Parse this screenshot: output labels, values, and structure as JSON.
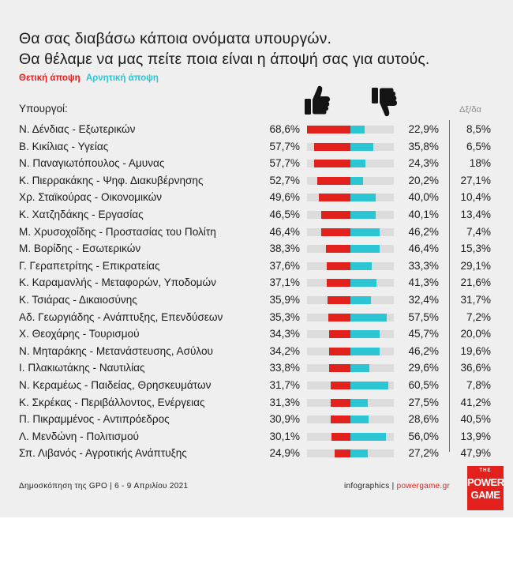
{
  "title_line1": "Θα σας διαβάσω κάποια ονόματα υπουργών.",
  "title_line2": "Θα θέλαμε να μας πείτε ποια είναι η άποψή σας για αυτούς.",
  "legend": {
    "positive": "Θετική άποψη",
    "negative": "Αρνητική άποψη"
  },
  "column_headers": {
    "ministers": "Υπουργοί:",
    "dk": "Δξ/δα"
  },
  "icons": {
    "positive": "thumbs-up-icon",
    "negative": "thumbs-down-icon"
  },
  "colors": {
    "positive": "#e3211c",
    "negative": "#2bc5d4",
    "track": "#dcdcdc",
    "brand": "#e3211c"
  },
  "footer": {
    "source": "Δημοσκόπηση της GPO | 6 - 9 Απριλίου 2021",
    "infographics": "infographics | ",
    "brand": "powergame.gr"
  },
  "logo": {
    "the": "THE",
    "line1": "POWER",
    "line2": "GAME"
  },
  "chart_data": {
    "type": "bar",
    "units": "%",
    "categories": [
      "Ν. Δένδιας - Εξωτερικών",
      "Β. Κικίλιας - Υγείας",
      "Ν. Παναγιωτόπουλος - Αμυνας",
      "Κ. Πιερρακάκης - Ψηφ. Διακυβέρνησης",
      "Χρ. Σταϊκούρας - Οικονομικών",
      "Κ. Χατζηδάκης - Εργασίας",
      "Μ. Χρυσοχοΐδης - Προστασίας του Πολίτη",
      "Μ. Βορίδης - Εσωτερικών",
      "Γ. Γεραπετρίτης - Επικρατείας",
      "Κ. Καραμανλής - Μεταφορών, Υποδομών",
      "Κ. Τσιάρας - Δικαιοσύνης",
      "Αδ. Γεωργιάδης - Ανάπτυξης, Επενδύσεων",
      "Χ. Θεοχάρης - Τουρισμού",
      "Ν. Μηταράκης - Μετανάστευσης, Ασύλου",
      "Ι. Πλακιωτάκης - Ναυτιλίας",
      "Ν. Κεραμέως - Παιδείας, Θρησκευμάτων",
      "Κ. Σκρέκας - Περιβάλλοντος, Ενέργειας",
      "Π. Πικραμμένος - Αντιπρόεδρος",
      "Λ. Μενδώνη - Πολιτισμού",
      "Σπ. Λιβανός - Αγροτικής Ανάπτυξης"
    ],
    "series": [
      {
        "name": "Θετική άποψη",
        "values": [
          68.6,
          57.7,
          57.7,
          52.7,
          49.6,
          46.5,
          46.4,
          38.3,
          37.6,
          37.1,
          35.9,
          35.3,
          34.3,
          34.2,
          33.8,
          31.7,
          31.3,
          30.9,
          30.1,
          24.9
        ],
        "labels": [
          "68,6%",
          "57,7%",
          "57,7%",
          "52,7%",
          "49,6%",
          "46,5%",
          "46,4%",
          "38,3%",
          "37,6%",
          "37,1%",
          "35,9%",
          "35,3%",
          "34,3%",
          "34,2%",
          "33,8%",
          "31,7%",
          "31,3%",
          "30,9%",
          "30,1%",
          "24,9%"
        ]
      },
      {
        "name": "Αρνητική άποψη",
        "values": [
          22.9,
          35.8,
          24.3,
          20.2,
          40.0,
          40.1,
          46.2,
          46.4,
          33.3,
          41.3,
          32.4,
          57.5,
          45.7,
          46.2,
          29.6,
          60.5,
          27.5,
          28.6,
          56.0,
          27.2
        ],
        "labels": [
          "22,9%",
          "35,8%",
          "24,3%",
          "20,2%",
          "40,0%",
          "40,1%",
          "46,2%",
          "46,4%",
          "33,3%",
          "41,3%",
          "32,4%",
          "57,5%",
          "45,7%",
          "46,2%",
          "29,6%",
          "60,5%",
          "27,5%",
          "28,6%",
          "56,0%",
          "27,2%"
        ]
      },
      {
        "name": "Δξ/δα",
        "values": [
          8.5,
          6.5,
          18,
          27.1,
          10.4,
          13.4,
          7.4,
          15.3,
          29.1,
          21.6,
          31.7,
          7.2,
          20.0,
          19.6,
          36.6,
          7.8,
          41.2,
          40.5,
          13.9,
          47.9
        ],
        "labels": [
          "8,5%",
          "6,5%",
          "18%",
          "27,1%",
          "10,4%",
          "13,4%",
          "7,4%",
          "15,3%",
          "29,1%",
          "21,6%",
          "31,7%",
          "7,2%",
          "20,0%",
          "19,6%",
          "36,6%",
          "7,8%",
          "41,2%",
          "40,5%",
          "13,9%",
          "47,9%"
        ]
      }
    ]
  }
}
